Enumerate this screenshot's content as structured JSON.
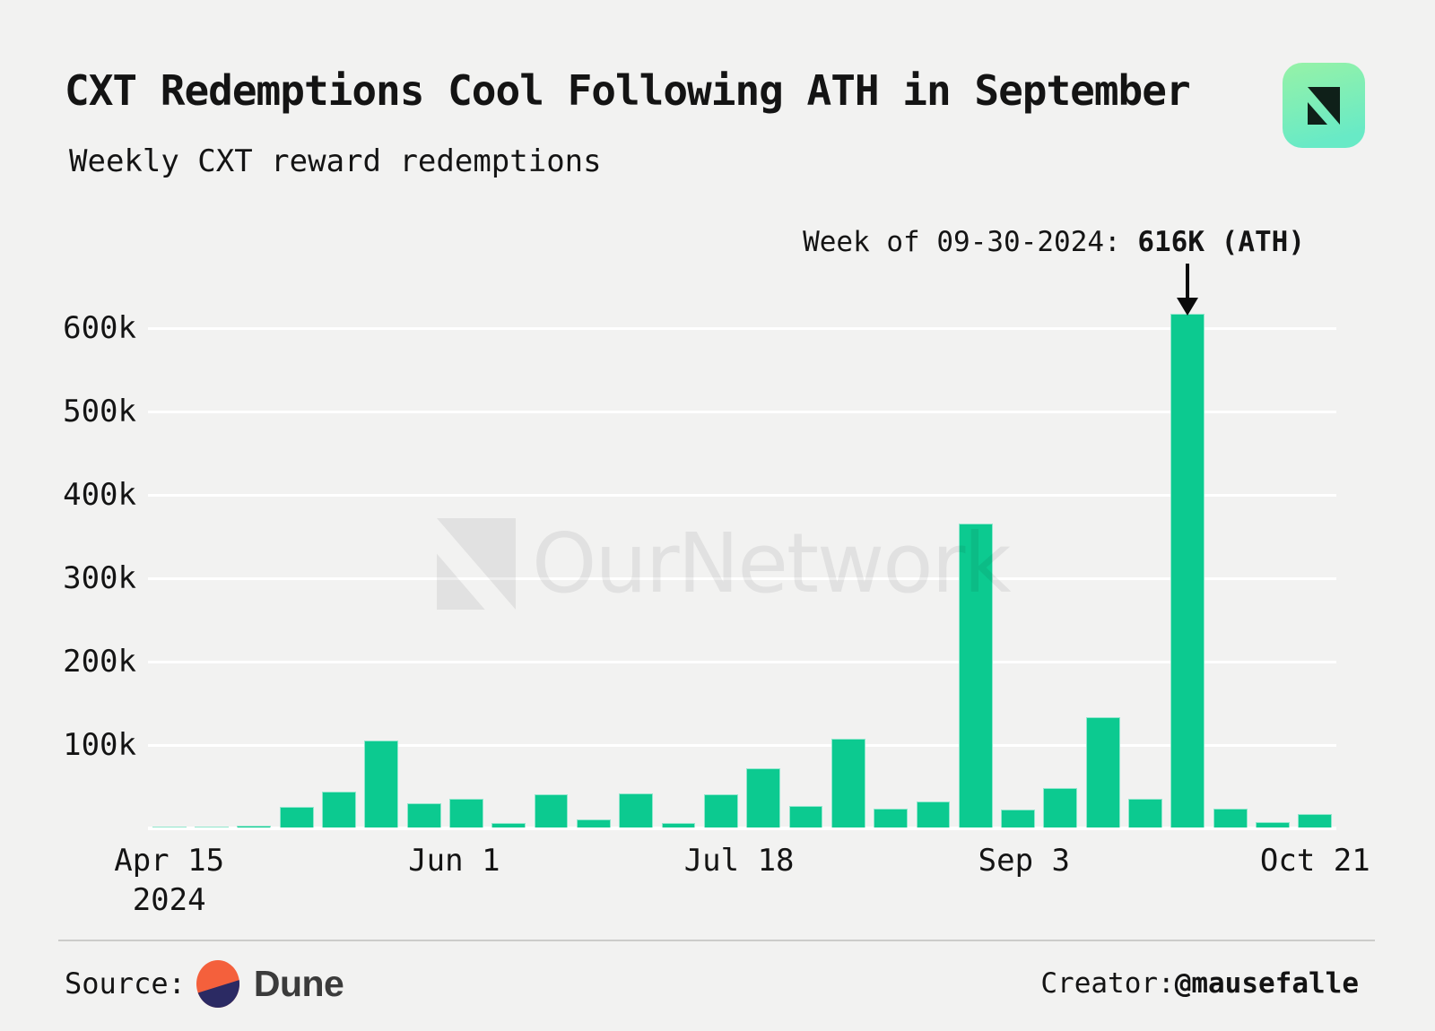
{
  "page": {
    "background": "#f2f2f1"
  },
  "header": {
    "title": "CXT Redemptions Cool Following ATH in September",
    "subtitle": "Weekly CXT reward redemptions"
  },
  "logo": {
    "name": "ournetwork-logo",
    "gradient_top": "#96f2a7",
    "gradient_bottom": "#68eac6",
    "glyph_color": "#0f2019"
  },
  "annotation": {
    "prefix": "Week of 09-30-2024: ",
    "bold": "616K (ATH)",
    "arrow_color": "#0b0b0b"
  },
  "watermark": {
    "text": "OurNetwork"
  },
  "footer": {
    "source_label": "Source:",
    "source_name": "Dune",
    "dune_orange": "#f4603c",
    "dune_navy": "#2b2a63",
    "creator_label": "Creator: ",
    "creator_handle": "@mausefalle"
  },
  "chart_data": {
    "type": "bar",
    "title": "CXT Redemptions Cool Following ATH in September",
    "subtitle": "Weekly CXT reward redemptions",
    "xlabel": "",
    "ylabel": "",
    "unit": "CXT tokens",
    "bar_color": "#0cca90",
    "gridline_color": "#ffffff",
    "grid": true,
    "legend": false,
    "ylim": [
      0,
      660000
    ],
    "x": [
      "2024-04-15",
      "2024-04-22",
      "2024-04-29",
      "2024-05-06",
      "2024-05-13",
      "2024-05-20",
      "2024-05-27",
      "2024-06-03",
      "2024-06-10",
      "2024-06-17",
      "2024-06-24",
      "2024-07-01",
      "2024-07-08",
      "2024-07-15",
      "2024-07-22",
      "2024-07-29",
      "2024-08-05",
      "2024-08-12",
      "2024-08-19",
      "2024-08-26",
      "2024-09-02",
      "2024-09-09",
      "2024-09-16",
      "2024-09-23",
      "2024-09-30",
      "2024-10-07",
      "2024-10-14",
      "2024-10-21"
    ],
    "values": [
      1000,
      1200,
      2500,
      25000,
      43000,
      104000,
      29000,
      34000,
      5500,
      40000,
      10000,
      41000,
      5000,
      40000,
      71000,
      26000,
      106000,
      23000,
      31000,
      364000,
      22000,
      47000,
      132000,
      34000,
      616000,
      23000,
      7000,
      16000
    ],
    "ath_index": 24,
    "ath_label": "Week of 09-30-2024: 616K (ATH)",
    "y_ticks": [
      {
        "label": "100k",
        "value": 100000
      },
      {
        "label": "200k",
        "value": 200000
      },
      {
        "label": "300k",
        "value": 300000
      },
      {
        "label": "400k",
        "value": 400000
      },
      {
        "label": "500k",
        "value": 500000
      },
      {
        "label": "600k",
        "value": 600000
      }
    ],
    "x_ticks": [
      {
        "label": "Apr 15",
        "label2": "2024",
        "week": 0
      },
      {
        "label": "Jun 1",
        "week": 6.714
      },
      {
        "label": "Jul 18",
        "week": 13.429
      },
      {
        "label": "Sep 3",
        "week": 20.143
      },
      {
        "label": "Oct 21",
        "week": 27
      }
    ]
  }
}
